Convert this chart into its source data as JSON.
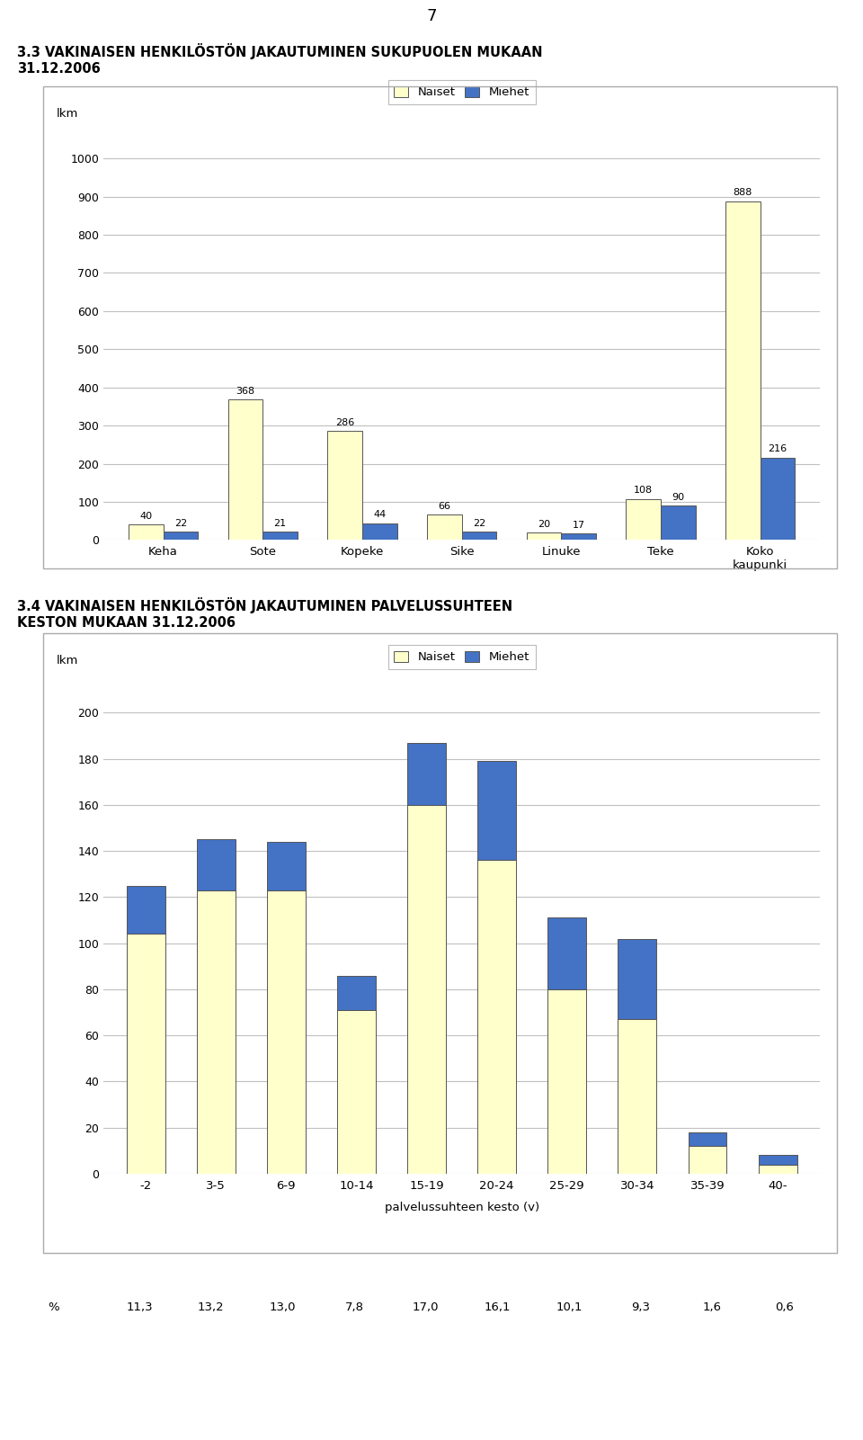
{
  "page_number": "7",
  "chart1": {
    "title_line1": "3.3 VAKINAISEN HENKILÖSTÖN JAKAUTUMINEN SUKUPUOLEN MUKAAN",
    "title_line2": "31.12.2006",
    "ylabel": "lkm",
    "categories": [
      "Keha",
      "Sote",
      "Kopeke",
      "Sike",
      "Linuke",
      "Teke",
      "Koko\nkaupunki"
    ],
    "naiset": [
      40,
      368,
      286,
      66,
      20,
      108,
      888
    ],
    "miehet": [
      22,
      21,
      44,
      22,
      17,
      90,
      216
    ],
    "ylim": [
      0,
      1000
    ],
    "yticks": [
      0,
      100,
      200,
      300,
      400,
      500,
      600,
      700,
      800,
      900,
      1000
    ],
    "naiset_color": "#FFFFCC",
    "miehet_color": "#4472C4",
    "legend_naiset": "Naiset",
    "legend_miehet": "Miehet"
  },
  "chart2": {
    "title_line1": "3.4 VAKINAISEN HENKILÖSTÖN JAKAUTUMINEN PALVELUSSUHTEEN",
    "title_line2": "KESTON MUKAAN 31.12.2006",
    "ylabel": "lkm",
    "xlabel": "palvelussuhteen kesto (v)",
    "categories": [
      "-2",
      "3-5",
      "6-9",
      "10-14",
      "15-19",
      "20-24",
      "25-29",
      "30-34",
      "35-39",
      "40-"
    ],
    "naiset": [
      104,
      123,
      123,
      71,
      160,
      136,
      80,
      67,
      12,
      4
    ],
    "miehet": [
      21,
      22,
      21,
      15,
      27,
      43,
      31,
      35,
      6,
      4
    ],
    "ylim": [
      0,
      200
    ],
    "yticks": [
      0,
      20,
      40,
      60,
      80,
      100,
      120,
      140,
      160,
      180,
      200
    ],
    "naiset_color": "#FFFFCC",
    "miehet_color": "#4472C4",
    "legend_naiset": "Naiset",
    "legend_miehet": "Miehet",
    "percentages": [
      "11,3",
      "13,2",
      "13,0",
      "7,8",
      "17,0",
      "16,1",
      "10,1",
      "9,3",
      "1,6",
      "0,6"
    ]
  },
  "bg_color": "#ffffff",
  "grid_color": "#c0c0c0",
  "border_color": "#808080",
  "bar_edge_color": "#555555",
  "font_color": "#000000"
}
